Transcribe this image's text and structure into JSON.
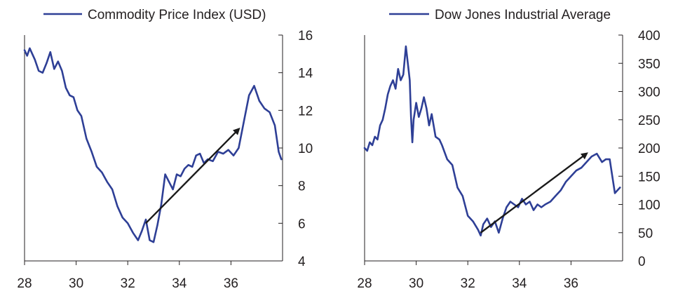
{
  "chart_data": [
    {
      "type": "line",
      "title": "",
      "xlabel": "",
      "ylabel": "",
      "legend": {
        "label": "Commodity Price Index (USD)",
        "placement": "top"
      },
      "xlim": [
        28,
        38
      ],
      "ylim": [
        4,
        16
      ],
      "x_ticks": [
        28,
        30,
        32,
        34,
        36
      ],
      "x_tick_labels": [
        "28",
        "30",
        "32",
        "34",
        "36"
      ],
      "y_ticks": [
        4,
        6,
        8,
        10,
        12,
        14,
        16
      ],
      "y_tick_labels": [
        "4",
        "6",
        "8",
        "10",
        "12",
        "14",
        "16"
      ],
      "y_axis_side": "right",
      "series": [
        {
          "name": "Commodity Price Index (USD)",
          "color": "#2e3f96",
          "x": [
            28.0,
            28.1,
            28.2,
            28.3,
            28.4,
            28.55,
            28.7,
            28.85,
            29.0,
            29.15,
            29.3,
            29.45,
            29.6,
            29.75,
            29.9,
            30.05,
            30.2,
            30.4,
            30.6,
            30.8,
            31.0,
            31.2,
            31.4,
            31.6,
            31.8,
            32.0,
            32.2,
            32.4,
            32.55,
            32.7,
            32.85,
            33.0,
            33.15,
            33.3,
            33.45,
            33.6,
            33.75,
            33.9,
            34.05,
            34.2,
            34.35,
            34.5,
            34.65,
            34.8,
            34.95,
            35.1,
            35.3,
            35.5,
            35.7,
            35.9,
            36.1,
            36.3,
            36.5,
            36.7,
            36.9,
            37.1,
            37.3,
            37.5,
            37.7,
            37.85,
            37.95
          ],
          "values": [
            15.2,
            14.9,
            15.3,
            15.0,
            14.7,
            14.1,
            14.0,
            14.5,
            15.1,
            14.2,
            14.6,
            14.1,
            13.2,
            12.8,
            12.7,
            12.0,
            11.7,
            10.5,
            9.8,
            9.0,
            8.7,
            8.2,
            7.8,
            6.9,
            6.3,
            6.0,
            5.5,
            5.1,
            5.6,
            6.2,
            5.1,
            5.0,
            5.9,
            7.0,
            8.6,
            8.2,
            7.8,
            8.6,
            8.5,
            8.9,
            9.1,
            9.0,
            9.6,
            9.7,
            9.2,
            9.4,
            9.3,
            9.8,
            9.7,
            9.9,
            9.6,
            10.0,
            11.4,
            12.8,
            13.3,
            12.5,
            12.1,
            11.9,
            11.2,
            9.8,
            9.4
          ]
        }
      ],
      "annotations": [
        {
          "type": "arrow",
          "from": [
            32.7,
            6.0
          ],
          "to": [
            36.3,
            11.0
          ]
        }
      ]
    },
    {
      "type": "line",
      "title": "",
      "xlabel": "",
      "ylabel": "",
      "legend": {
        "label": "Dow Jones Industrial Average",
        "placement": "top"
      },
      "xlim": [
        28,
        38
      ],
      "ylim": [
        0,
        400
      ],
      "x_ticks": [
        28,
        30,
        32,
        34,
        36
      ],
      "x_tick_labels": [
        "28",
        "30",
        "32",
        "34",
        "36"
      ],
      "y_ticks": [
        0,
        50,
        100,
        150,
        200,
        250,
        300,
        350,
        400
      ],
      "y_tick_labels": [
        "0",
        "50",
        "100",
        "150",
        "200",
        "250",
        "300",
        "350",
        "400"
      ],
      "y_axis_side": "right",
      "series": [
        {
          "name": "Dow Jones Industrial Average",
          "color": "#2e3f96",
          "x": [
            28.0,
            28.1,
            28.2,
            28.3,
            28.4,
            28.5,
            28.6,
            28.7,
            28.8,
            28.9,
            29.0,
            29.1,
            29.2,
            29.3,
            29.4,
            29.5,
            29.6,
            29.7,
            29.75,
            29.8,
            29.85,
            29.9,
            30.0,
            30.1,
            30.2,
            30.3,
            30.4,
            30.5,
            30.6,
            30.75,
            30.9,
            31.0,
            31.2,
            31.4,
            31.6,
            31.8,
            32.0,
            32.2,
            32.4,
            32.5,
            32.6,
            32.75,
            32.9,
            33.05,
            33.2,
            33.35,
            33.5,
            33.65,
            33.8,
            33.95,
            34.1,
            34.25,
            34.4,
            34.55,
            34.7,
            34.85,
            35.0,
            35.2,
            35.4,
            35.6,
            35.8,
            36.0,
            36.2,
            36.4,
            36.6,
            36.8,
            37.0,
            37.2,
            37.35,
            37.5,
            37.6,
            37.7,
            37.8,
            37.9
          ],
          "values": [
            200,
            195,
            210,
            205,
            220,
            215,
            240,
            250,
            270,
            295,
            310,
            320,
            305,
            340,
            320,
            330,
            380,
            340,
            320,
            255,
            210,
            250,
            280,
            255,
            270,
            290,
            270,
            240,
            260,
            220,
            215,
            205,
            180,
            170,
            130,
            115,
            80,
            70,
            55,
            45,
            65,
            75,
            60,
            70,
            50,
            75,
            95,
            105,
            100,
            95,
            110,
            100,
            105,
            90,
            100,
            95,
            100,
            105,
            115,
            125,
            140,
            150,
            160,
            165,
            175,
            185,
            190,
            175,
            180,
            180,
            150,
            120,
            125,
            130
          ]
        }
      ],
      "annotations": [
        {
          "type": "arrow",
          "from": [
            32.5,
            50
          ],
          "to": [
            36.6,
            190
          ]
        }
      ]
    }
  ]
}
